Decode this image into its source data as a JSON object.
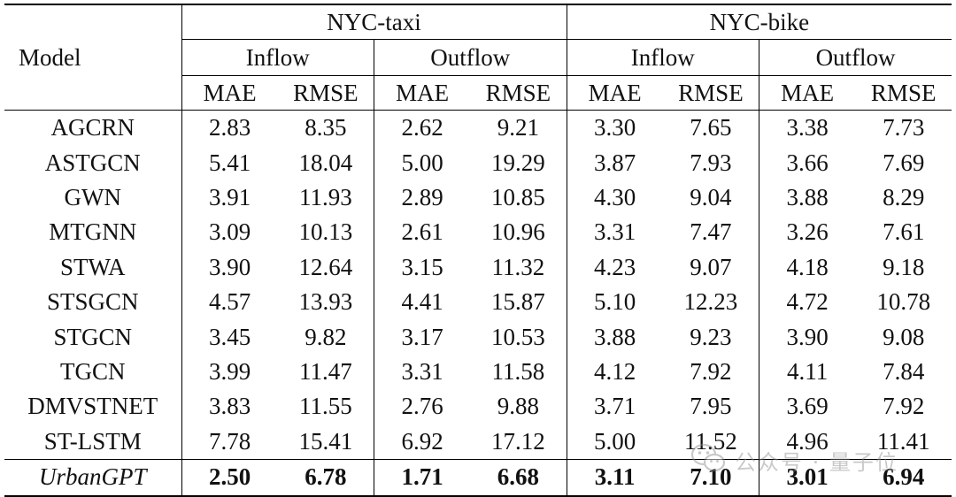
{
  "table": {
    "model_header": "Model",
    "datasets": [
      "NYC-taxi",
      "NYC-bike"
    ],
    "flows": [
      "Inflow",
      "Outflow",
      "Inflow",
      "Outflow"
    ],
    "metrics": [
      "MAE",
      "RMSE",
      "MAE",
      "RMSE",
      "MAE",
      "RMSE",
      "MAE",
      "RMSE"
    ],
    "rows": [
      {
        "model": "AGCRN",
        "values": [
          "2.83",
          "8.35",
          "2.62",
          "9.21",
          "3.30",
          "7.65",
          "3.38",
          "7.73"
        ]
      },
      {
        "model": "ASTGCN",
        "values": [
          "5.41",
          "18.04",
          "5.00",
          "19.29",
          "3.87",
          "7.93",
          "3.66",
          "7.69"
        ]
      },
      {
        "model": "GWN",
        "values": [
          "3.91",
          "11.93",
          "2.89",
          "10.85",
          "4.30",
          "9.04",
          "3.88",
          "8.29"
        ]
      },
      {
        "model": "MTGNN",
        "values": [
          "3.09",
          "10.13",
          "2.61",
          "10.96",
          "3.31",
          "7.47",
          "3.26",
          "7.61"
        ]
      },
      {
        "model": "STWA",
        "values": [
          "3.90",
          "12.64",
          "3.15",
          "11.32",
          "4.23",
          "9.07",
          "4.18",
          "9.18"
        ]
      },
      {
        "model": "STSGCN",
        "values": [
          "4.57",
          "13.93",
          "4.41",
          "15.87",
          "5.10",
          "12.23",
          "4.72",
          "10.78"
        ]
      },
      {
        "model": "STGCN",
        "values": [
          "3.45",
          "9.82",
          "3.17",
          "10.53",
          "3.88",
          "9.23",
          "3.90",
          "9.08"
        ]
      },
      {
        "model": "TGCN",
        "values": [
          "3.99",
          "11.47",
          "3.31",
          "11.58",
          "4.12",
          "7.92",
          "4.11",
          "7.84"
        ]
      },
      {
        "model": "DMVSTNET",
        "values": [
          "3.83",
          "11.55",
          "2.76",
          "9.88",
          "3.71",
          "7.95",
          "3.69",
          "7.92"
        ]
      },
      {
        "model": "ST-LSTM",
        "values": [
          "7.78",
          "15.41",
          "6.92",
          "17.12",
          "5.00",
          "11.52",
          "4.96",
          "11.41"
        ]
      }
    ],
    "highlight_row": {
      "model": "UrbanGPT",
      "values": [
        "2.50",
        "6.78",
        "1.71",
        "6.68",
        "3.11",
        "7.10",
        "3.01",
        "6.94"
      ]
    }
  },
  "watermark": {
    "text": "公众号 · 量子位",
    "icon": "wechat-icon"
  }
}
